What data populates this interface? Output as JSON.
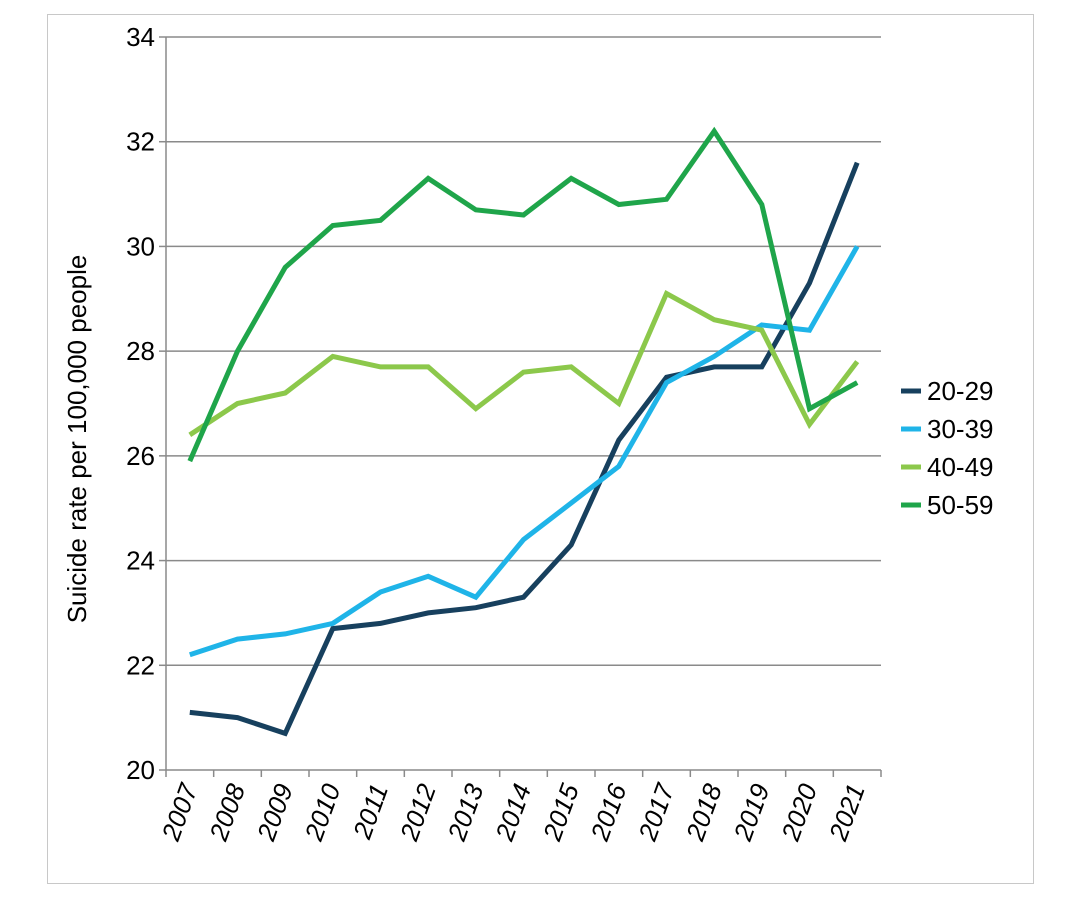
{
  "chart_data": {
    "type": "line",
    "title": "",
    "xlabel": "",
    "ylabel": "Suicide rate per 100,000 people",
    "x": [
      "2007",
      "2008",
      "2009",
      "2010",
      "2011",
      "2012",
      "2013",
      "2014",
      "2015",
      "2016",
      "2017",
      "2018",
      "2019",
      "2020",
      "2021"
    ],
    "ylim": [
      20,
      34
    ],
    "yticks": [
      20,
      22,
      24,
      26,
      28,
      30,
      32,
      34
    ],
    "grid": "horizontal",
    "legend_position": "right",
    "series": [
      {
        "name": "20-29",
        "color": "#17405e",
        "values": [
          21.1,
          21.0,
          20.7,
          22.7,
          22.8,
          23.0,
          23.1,
          23.3,
          24.3,
          26.3,
          27.5,
          27.7,
          27.7,
          29.3,
          31.6
        ]
      },
      {
        "name": "30-39",
        "color": "#1fb4e8",
        "values": [
          22.2,
          22.5,
          22.6,
          22.8,
          23.4,
          23.7,
          23.3,
          24.4,
          25.1,
          25.8,
          27.4,
          27.9,
          28.5,
          28.4,
          30.0
        ]
      },
      {
        "name": "40-49",
        "color": "#8cc84b",
        "values": [
          26.4,
          27.0,
          27.2,
          27.9,
          27.7,
          27.7,
          26.9,
          27.6,
          27.7,
          27.0,
          29.1,
          28.6,
          28.4,
          26.6,
          27.8
        ]
      },
      {
        "name": "50-59",
        "color": "#1fa54a",
        "values": [
          25.9,
          28.0,
          29.6,
          30.4,
          30.5,
          31.3,
          30.7,
          30.6,
          31.3,
          30.8,
          30.9,
          32.2,
          30.8,
          26.9,
          27.4
        ]
      }
    ]
  }
}
